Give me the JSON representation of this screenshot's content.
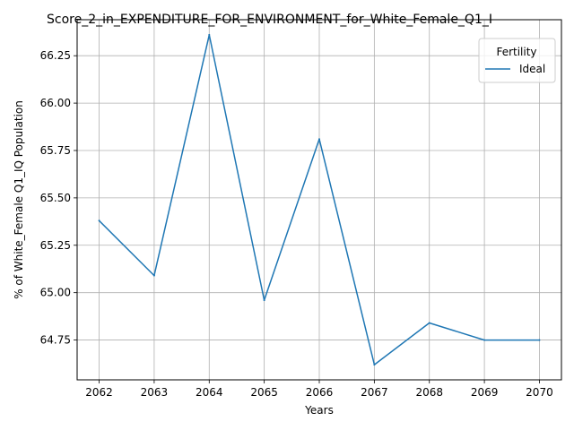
{
  "chart_data": {
    "type": "line",
    "title": "Score_2_in_EXPENDITURE_FOR_ENVIRONMENT_for_White_Female_Q1_I",
    "xlabel": "Years",
    "ylabel": "% of White_Female Q1_IQ Population",
    "x": [
      2062,
      2063,
      2064,
      2065,
      2066,
      2067,
      2068,
      2069,
      2070
    ],
    "x_ticks": [
      "2062",
      "2063",
      "2064",
      "2065",
      "2066",
      "2067",
      "2068",
      "2069",
      "2070"
    ],
    "y_ticks": [
      "64.75",
      "65.00",
      "65.25",
      "65.50",
      "65.75",
      "66.00",
      "66.25"
    ],
    "xlim": [
      2061.6,
      2070.4
    ],
    "ylim": [
      64.54,
      66.44
    ],
    "grid": true,
    "legend": {
      "title": "Fertility",
      "placement": "top-right"
    },
    "series": [
      {
        "name": "Ideal",
        "color": "#1f77b4",
        "values": [
          65.38,
          65.09,
          66.36,
          64.96,
          65.81,
          64.62,
          64.84,
          64.75,
          64.75
        ]
      }
    ]
  }
}
